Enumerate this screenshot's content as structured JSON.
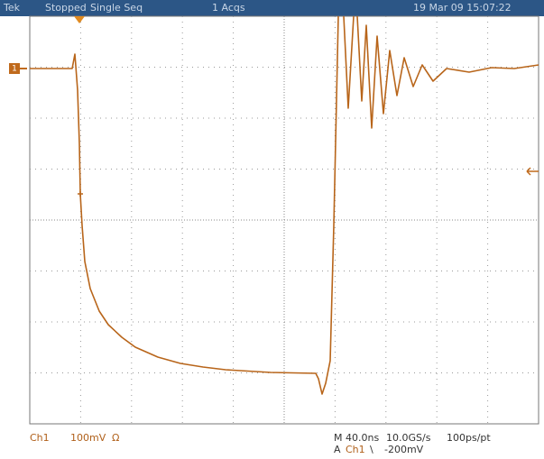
{
  "header": {
    "brand": "Tek",
    "state": "Stopped",
    "mode": "Single Seq",
    "acquisitions": "1 Acqs",
    "timestamp": "19 Mar 09 15:07:22"
  },
  "footer": {
    "channel": "Ch1",
    "scale": "100mV",
    "coupling": "Ω",
    "timebase": "M 40.0ns",
    "sample_rate": "10.0GS/s",
    "resolution": "100ps/pt",
    "trigger": {
      "prefix": "A",
      "source": "Ch1",
      "slope": "\\",
      "level": "-200mV"
    }
  },
  "markers": {
    "channel": "1"
  }
}
